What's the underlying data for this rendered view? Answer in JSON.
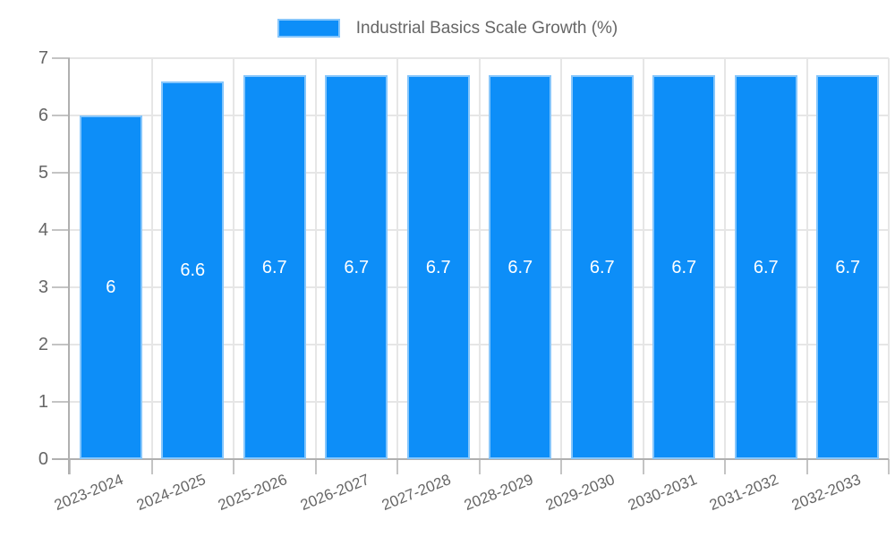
{
  "chart_data": {
    "type": "bar",
    "title": "",
    "legend": [
      "Industrial Basics Scale Growth (%)"
    ],
    "legend_position": "top",
    "categories": [
      "2023-2024",
      "2024-2025",
      "2025-2026",
      "2026-2027",
      "2027-2028",
      "2028-2029",
      "2029-2030",
      "2030-2031",
      "2031-2032",
      "2032-2033"
    ],
    "values": [
      6,
      6.6,
      6.7,
      6.7,
      6.7,
      6.7,
      6.7,
      6.7,
      6.7,
      6.7
    ],
    "bar_labels": [
      "6",
      "6.6",
      "6.7",
      "6.7",
      "6.7",
      "6.7",
      "6.7",
      "6.7",
      "6.7",
      "6.7"
    ],
    "xlabel": "",
    "ylabel": "",
    "ylim": [
      0,
      7
    ],
    "yticks": [
      0,
      1,
      2,
      3,
      4,
      5,
      6,
      7
    ],
    "grid": true,
    "colors": {
      "bar_fill": "#0d8ef8",
      "bar_border": "#86c6fb",
      "tick_text": "#666666",
      "bar_label_text": "#ffffff",
      "grid_line": "#e6e6e6",
      "axis_line": "#b0b0b0",
      "tick_mark": "#c4c4c4"
    }
  }
}
